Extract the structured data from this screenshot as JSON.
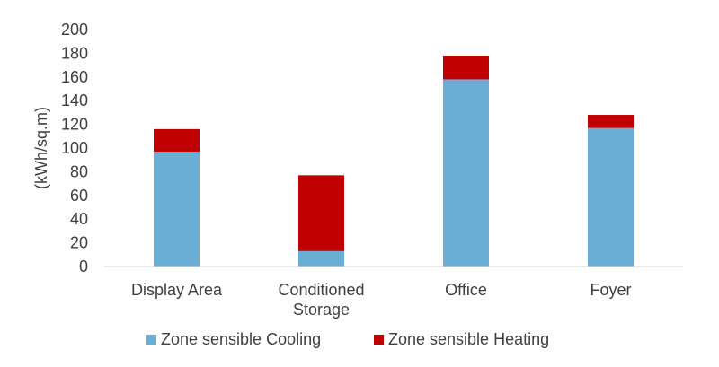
{
  "chart_data": {
    "type": "bar",
    "stacked": true,
    "categories": [
      "Display Area",
      "Conditioned Storage",
      "Office",
      "Foyer"
    ],
    "category_lines": [
      [
        "Display Area"
      ],
      [
        "Conditioned",
        "Storage"
      ],
      [
        "Office"
      ],
      [
        "Foyer"
      ]
    ],
    "series": [
      {
        "name": "Zone sensible Cooling",
        "color": "#6aaed6",
        "values": [
          97,
          13,
          158,
          117
        ]
      },
      {
        "name": "Zone sensible Heating",
        "color": "#c00000",
        "values": [
          19,
          64,
          20,
          11
        ]
      }
    ],
    "title": "",
    "xlabel": "",
    "ylabel": "(kWh/sq.m)",
    "ylim": [
      0,
      200
    ],
    "yticks": [
      "0",
      "20",
      "40",
      "60",
      "80",
      "100",
      "120",
      "140",
      "160",
      "180",
      "200"
    ],
    "grid": false,
    "legend_position": "bottom"
  }
}
